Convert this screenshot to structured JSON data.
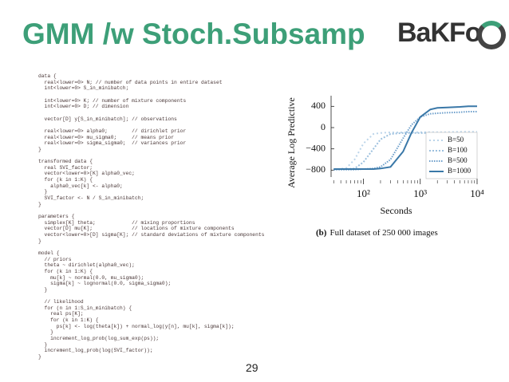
{
  "title": "GMM /w Stoch.Subsamp",
  "logo": "BaKFo",
  "code_blocks": [
    [
      "data {",
      "  real<lower=0> N; // number of data points in entire dataset",
      "  int<lower=0> S_in_minibatch;"
    ],
    [
      "  int<lower=0> K; // number of mixture components",
      "  int<lower=0> D; // dimension"
    ],
    [
      "  vector[D] y[S_in_minibatch]; // observations"
    ],
    [
      "  real<lower=0> alpha0;        // dirichlet prior",
      "  real<lower=0> mu_sigma0;     // means prior",
      "  real<lower=0> sigma_sigma0;  // variances prior",
      "}"
    ],
    [
      "transformed data {",
      "  real SVI_factor;",
      "  vector<lower=0>[K] alpha0_vec;",
      "  for (k in 1:K) {",
      "    alpha0_vec[k] <- alpha0;",
      "  }",
      "  SVI_factor <- N / S_in_minibatch;",
      "}"
    ],
    [
      "parameters {",
      "  simplex[K] theta;            // mixing proportions",
      "  vector[D] mu[K];             // locations of mixture components",
      "  vector<lower=0>[D] sigma[K]; // standard deviations of mixture components",
      "}"
    ],
    [
      "model {",
      "  // priors",
      "  theta ~ dirichlet(alpha0_vec);",
      "  for (k in 1:K) {",
      "    mu[k] ~ normal(0.0, mu_sigma0);",
      "    sigma[k] ~ lognormal(0.0, sigma_sigma0);",
      "  }"
    ],
    [
      "  // likelihood",
      "  for (n in 1:S_in_minibatch) {",
      "    real ps[K];",
      "    for (k in 1:K) {",
      "      ps[k] <- log(theta[k]) + normal_log(y[n], mu[k], sigma[k]);",
      "    }",
      "    increment_log_prob(log_sum_exp(ps));",
      "  }",
      "  increment_log_prob(log(SVI_factor));",
      "}"
    ]
  ],
  "page_number": "29",
  "chart_data": {
    "type": "line",
    "x_label": "Seconds",
    "y_label": "Average Log Predictive",
    "caption_label": "(b)",
    "caption_text": "Full dataset of 250 000 images",
    "x": [
      30,
      50,
      70,
      100,
      150,
      200,
      300,
      500,
      700,
      1000,
      1500,
      2000,
      3000,
      5000,
      7000,
      10000
    ],
    "xlog": true,
    "xlim": [
      27,
      10000
    ],
    "xticks": [
      {
        "value": 100,
        "label": "10²"
      },
      {
        "value": 1000,
        "label": "10³"
      },
      {
        "value": 10000,
        "label": "10⁴"
      }
    ],
    "ylim": [
      -930,
      600
    ],
    "yticks": [
      400,
      0,
      {
        "value": -400,
        "label": "−400"
      },
      {
        "value": -800,
        "label": "−800"
      }
    ],
    "legend": "lower right",
    "series": [
      {
        "name": "B=50",
        "color": "#bcd5ea",
        "dash": "2 3",
        "values": [
          -790,
          -760,
          -600,
          -300,
          -120,
          -100,
          -90,
          -90,
          -90,
          -85,
          -85,
          -85,
          -85,
          -80,
          -80,
          -80
        ]
      },
      {
        "name": "B=100",
        "color": "#9cc0de",
        "dash": "2 2",
        "values": [
          -780,
          -780,
          -770,
          -650,
          -400,
          -220,
          -120,
          -100,
          -100,
          -100,
          -100,
          -110,
          -110,
          -110,
          -120,
          -120
        ]
      },
      {
        "name": "B=500",
        "color": "#6d9fcb",
        "dash": "1.5 1.5",
        "values": [
          -790,
          -790,
          -790,
          -780,
          -770,
          -740,
          -600,
          -200,
          50,
          200,
          260,
          270,
          280,
          290,
          300,
          300
        ]
      },
      {
        "name": "B=1000",
        "color": "#3a78a8",
        "dash": "none",
        "values": [
          -780,
          -780,
          -780,
          -780,
          -780,
          -770,
          -740,
          -450,
          -100,
          200,
          340,
          370,
          380,
          390,
          400,
          400
        ]
      }
    ]
  }
}
